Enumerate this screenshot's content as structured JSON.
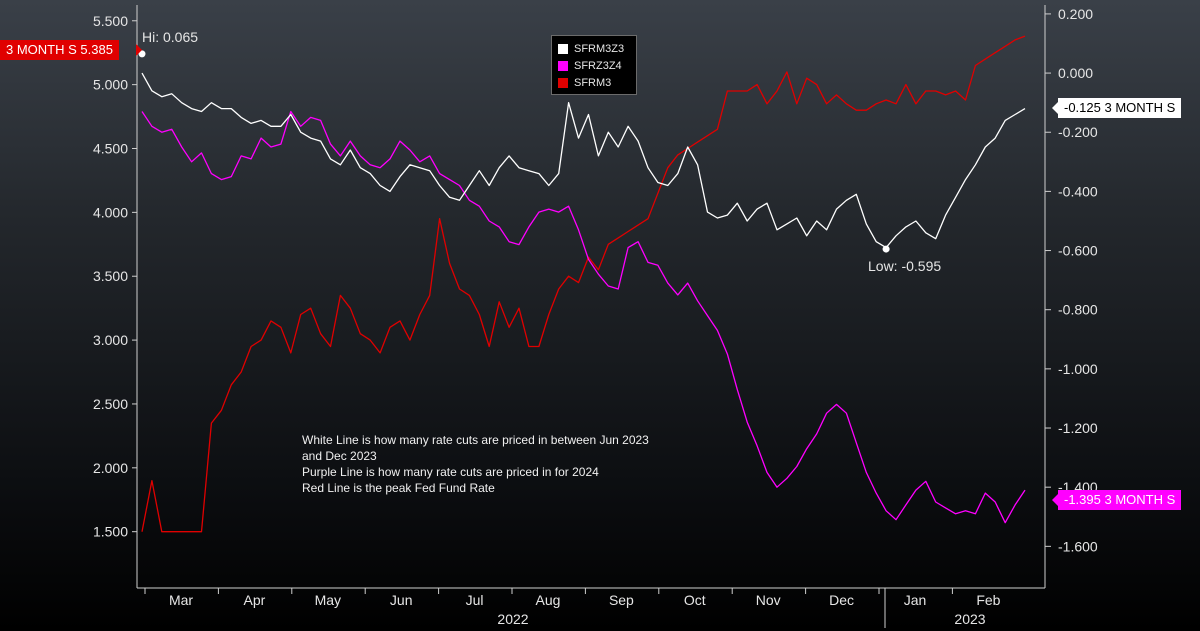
{
  "chart_data": {
    "type": "line",
    "x_labels": [
      "Mar",
      "Apr",
      "May",
      "Jun",
      "Jul",
      "Aug",
      "Sep",
      "Oct",
      "Nov",
      "Dec",
      "Jan",
      "Feb"
    ],
    "years": [
      "2022",
      "2023"
    ],
    "left_axis": {
      "ticks": [
        "5.500",
        "5.000",
        "4.500",
        "4.000",
        "3.500",
        "3.000",
        "2.500",
        "2.000",
        "1.500"
      ],
      "ylim": [
        1.2,
        5.6
      ]
    },
    "right_axis": {
      "ticks": [
        "0.200",
        "0.000",
        "-0.200",
        "-0.400",
        "-0.600",
        "-0.800",
        "-1.000",
        "-1.200",
        "-1.400",
        "-1.600"
      ],
      "ylim": [
        -1.68,
        0.22
      ]
    },
    "series": [
      {
        "name": "SFRM3Z3",
        "color": "#ffffff",
        "axis": "right",
        "values": [
          0.0,
          -0.06,
          -0.08,
          -0.07,
          -0.1,
          -0.12,
          -0.13,
          -0.1,
          -0.12,
          -0.12,
          -0.15,
          -0.17,
          -0.16,
          -0.18,
          -0.18,
          -0.14,
          -0.2,
          -0.22,
          -0.23,
          -0.29,
          -0.31,
          -0.26,
          -0.32,
          -0.34,
          -0.38,
          -0.4,
          -0.35,
          -0.31,
          -0.32,
          -0.33,
          -0.38,
          -0.42,
          -0.43,
          -0.38,
          -0.33,
          -0.38,
          -0.32,
          -0.28,
          -0.32,
          -0.33,
          -0.34,
          -0.38,
          -0.34,
          -0.1,
          -0.22,
          -0.14,
          -0.28,
          -0.2,
          -0.25,
          -0.18,
          -0.23,
          -0.32,
          -0.37,
          -0.38,
          -0.34,
          -0.25,
          -0.31,
          -0.47,
          -0.49,
          -0.48,
          -0.44,
          -0.5,
          -0.46,
          -0.44,
          -0.53,
          -0.51,
          -0.49,
          -0.55,
          -0.5,
          -0.53,
          -0.46,
          -0.43,
          -0.41,
          -0.51,
          -0.57,
          -0.59,
          -0.55,
          -0.52,
          -0.5,
          -0.54,
          -0.56,
          -0.48,
          -0.42,
          -0.36,
          -0.31,
          -0.25,
          -0.22,
          -0.16,
          -0.14,
          -0.12
        ]
      },
      {
        "name": "SFRZ3Z4",
        "color": "#ff00ff",
        "axis": "right",
        "values": [
          -0.13,
          -0.18,
          -0.2,
          -0.19,
          -0.25,
          -0.3,
          -0.27,
          -0.34,
          -0.36,
          -0.35,
          -0.28,
          -0.29,
          -0.22,
          -0.25,
          -0.24,
          -0.13,
          -0.18,
          -0.15,
          -0.16,
          -0.24,
          -0.28,
          -0.23,
          -0.28,
          -0.31,
          -0.32,
          -0.29,
          -0.23,
          -0.26,
          -0.3,
          -0.28,
          -0.34,
          -0.36,
          -0.38,
          -0.43,
          -0.45,
          -0.5,
          -0.52,
          -0.57,
          -0.58,
          -0.52,
          -0.47,
          -0.46,
          -0.47,
          -0.45,
          -0.53,
          -0.63,
          -0.68,
          -0.72,
          -0.73,
          -0.59,
          -0.57,
          -0.64,
          -0.65,
          -0.71,
          -0.75,
          -0.71,
          -0.77,
          -0.82,
          -0.87,
          -0.95,
          -1.07,
          -1.18,
          -1.26,
          -1.35,
          -1.4,
          -1.37,
          -1.33,
          -1.27,
          -1.22,
          -1.15,
          -1.12,
          -1.15,
          -1.25,
          -1.35,
          -1.42,
          -1.48,
          -1.51,
          -1.46,
          -1.41,
          -1.38,
          -1.45,
          -1.47,
          -1.49,
          -1.48,
          -1.49,
          -1.42,
          -1.45,
          -1.52,
          -1.46,
          -1.41
        ]
      },
      {
        "name": "SFRM3",
        "color": "#e00000",
        "axis": "left",
        "values": [
          1.5,
          1.9,
          1.5,
          1.5,
          1.5,
          1.5,
          1.5,
          2.35,
          2.45,
          2.65,
          2.75,
          2.95,
          3.0,
          3.15,
          3.1,
          2.9,
          3.2,
          3.25,
          3.05,
          2.95,
          3.35,
          3.25,
          3.05,
          3.0,
          2.9,
          3.1,
          3.15,
          3.0,
          3.2,
          3.35,
          3.95,
          3.6,
          3.4,
          3.35,
          3.2,
          2.95,
          3.3,
          3.1,
          3.25,
          2.95,
          2.95,
          3.2,
          3.4,
          3.5,
          3.45,
          3.65,
          3.55,
          3.75,
          3.8,
          3.85,
          3.9,
          3.95,
          4.15,
          4.35,
          4.45,
          4.5,
          4.55,
          4.6,
          4.65,
          4.95,
          4.95,
          4.95,
          5.0,
          4.85,
          4.95,
          5.1,
          4.85,
          5.05,
          5.0,
          4.85,
          4.92,
          4.85,
          4.8,
          4.8,
          4.85,
          4.88,
          4.85,
          5.0,
          4.85,
          4.95,
          4.95,
          4.92,
          4.95,
          4.88,
          5.15,
          5.2,
          5.25,
          5.3,
          5.35,
          5.38
        ]
      }
    ],
    "annotations": {
      "hi": "Hi: 0.065",
      "low": "Low: -0.595"
    },
    "last_value_tags": {
      "sfrm3": "3 MONTH S 5.385",
      "sfrm3z3": "-0.125 3 MONTH S",
      "sfrz3z4": "-1.395 3 MONTH S"
    },
    "notes": [
      "White Line is how many rate cuts are priced in between Jun 2023",
      "and Dec 2023",
      "Purple Line is how many rate cuts are priced in for 2024",
      "Red Line is the peak Fed Fund Rate"
    ]
  }
}
